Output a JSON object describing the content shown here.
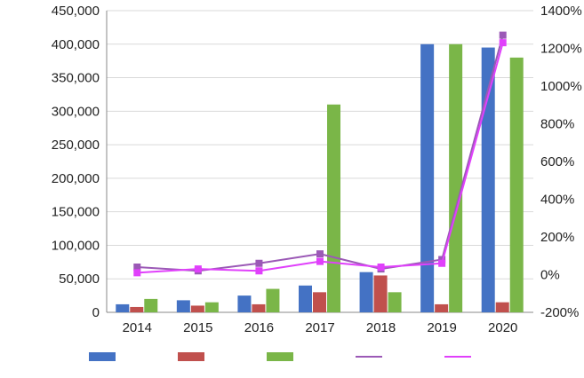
{
  "chart_data": {
    "type": "bar",
    "categories": [
      "2014",
      "2015",
      "2016",
      "2017",
      "2018",
      "2019",
      "2020"
    ],
    "y_left": {
      "ticks": [
        "0",
        "50,000",
        "100,000",
        "150,000",
        "200,000",
        "250,000",
        "300,000",
        "350,000",
        "400,000",
        "450,000"
      ],
      "ylim": [
        0,
        450000
      ]
    },
    "y_right": {
      "ticks": [
        "-200%",
        "0%",
        "200%",
        "400%",
        "600%",
        "800%",
        "1000%",
        "1200%",
        "1400%"
      ],
      "ylim": [
        -200,
        1400
      ]
    },
    "series": [
      {
        "color": "#4472c4",
        "type": "bar",
        "axis": "left",
        "values": [
          12000,
          18000,
          25000,
          40000,
          60000,
          400000,
          395000
        ]
      },
      {
        "color": "#c0504d",
        "type": "bar",
        "axis": "left",
        "values": [
          8000,
          10000,
          12000,
          30000,
          55000,
          12000,
          15000
        ]
      },
      {
        "color": "#7ab648",
        "type": "bar",
        "axis": "left",
        "values": [
          20000,
          15000,
          35000,
          310000,
          30000,
          400000,
          380000
        ]
      },
      {
        "color": "#9b59b6",
        "type": "line",
        "axis": "right",
        "values": [
          40,
          20,
          60,
          110,
          30,
          80,
          1270
        ]
      },
      {
        "color": "#e040fb",
        "type": "line",
        "axis": "right",
        "values": [
          10,
          30,
          20,
          70,
          40,
          60,
          1230
        ]
      }
    ],
    "legend_placement": "bottom",
    "grid": true
  }
}
